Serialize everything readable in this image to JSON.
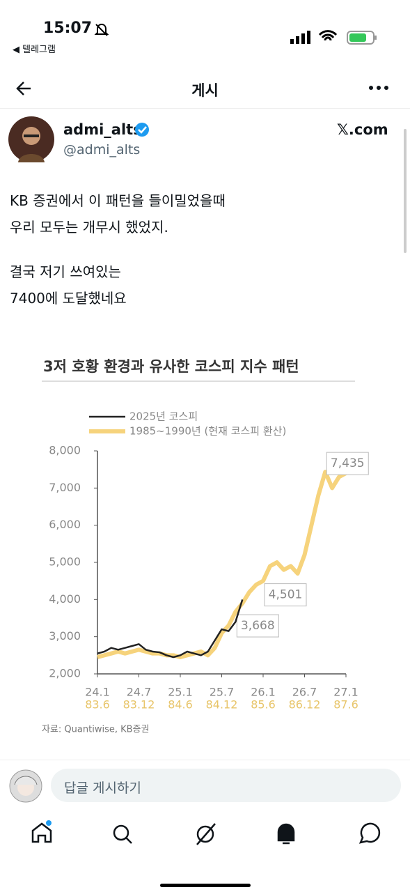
{
  "status_bar": {
    "time": "15:07",
    "back_app": "◀ 텔레그램"
  },
  "header": {
    "title": "게시"
  },
  "post": {
    "author_name": "admi_alts",
    "author_handle": "@admi_alts",
    "source": "𝕏.com",
    "lines": [
      "KB 증권에서 이 패턴을 들이밀었을때",
      "우리 모두는 개무시 했었지.",
      "결국 저기 쓰여있는",
      "7400에 도달했네요"
    ]
  },
  "chart": {
    "type": "line",
    "title": "3저 호황 환경과 유사한 코스피 지수 패턴",
    "categories": [
      "24.1",
      null,
      null,
      null,
      null,
      null,
      "24.7",
      null,
      null,
      null,
      null,
      null,
      "25.1",
      null,
      null,
      null,
      null,
      null,
      "25.7",
      null,
      null,
      null,
      null,
      null,
      "26.1",
      null,
      null,
      null,
      null,
      null,
      "26.7",
      null,
      null,
      null,
      null,
      null,
      "27.1"
    ],
    "secondary_categories": [
      "83.6",
      null,
      null,
      null,
      null,
      null,
      "83.12",
      null,
      null,
      null,
      null,
      null,
      "84.6",
      null,
      null,
      null,
      null,
      null,
      "84.12",
      null,
      null,
      null,
      null,
      null,
      "85.6",
      null,
      null,
      null,
      null,
      null,
      "86.12",
      null,
      null,
      null,
      null,
      null,
      "87.6"
    ],
    "series": [
      {
        "name": "2025년 코스피",
        "color": "#222222",
        "values": [
          2550,
          2600,
          2700,
          2650,
          2700,
          2750,
          2800,
          2650,
          2600,
          2580,
          2500,
          2450,
          2500,
          2600,
          2550,
          2500,
          2600,
          2900,
          3200,
          3150,
          3400,
          4000,
          null,
          null,
          null,
          null,
          null,
          null,
          null,
          null,
          null,
          null,
          null,
          null,
          null,
          null,
          null
        ]
      },
      {
        "name": "1985~1990년 (현재 코스피 환산)",
        "color": "#f6d37c",
        "values": [
          2450,
          2500,
          2550,
          2600,
          2550,
          2600,
          2650,
          2600,
          2550,
          2550,
          2500,
          2500,
          2450,
          2500,
          2550,
          2600,
          2500,
          2700,
          3100,
          3300,
          3668,
          3900,
          4200,
          4400,
          4501,
          4900,
          5000,
          4800,
          4900,
          4700,
          5200,
          6000,
          6800,
          7435,
          7000,
          7300,
          7400
        ],
        "value_labels": [
          null,
          null,
          null,
          null,
          null,
          null,
          null,
          null,
          null,
          null,
          null,
          null,
          null,
          null,
          null,
          null,
          null,
          null,
          null,
          null,
          "3,668",
          null,
          null,
          null,
          "4,501",
          null,
          null,
          null,
          null,
          null,
          null,
          null,
          null,
          "7,435",
          null,
          null,
          null
        ]
      }
    ],
    "ylim": [
      2000,
      8000
    ],
    "yticks": [
      {
        "value": 2000,
        "label": "2,000"
      },
      {
        "value": 3000,
        "label": "3,000"
      },
      {
        "value": 4000,
        "label": "4,000"
      },
      {
        "value": 5000,
        "label": "5,000"
      },
      {
        "value": 6000,
        "label": "6,000"
      },
      {
        "value": 7000,
        "label": "7,000"
      },
      {
        "value": 8000,
        "label": "8,000"
      }
    ],
    "source": "자료: Quantiwise, KB증권"
  },
  "reply": {
    "placeholder": "답글 게시하기"
  }
}
